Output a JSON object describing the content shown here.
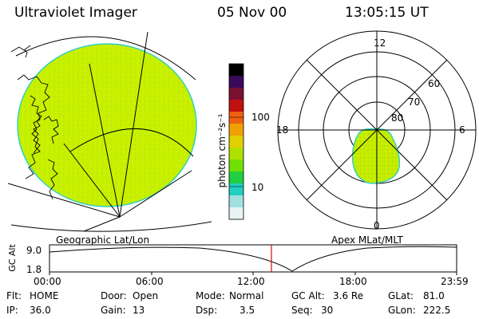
{
  "header": {
    "title": "Ultraviolet Imager",
    "date": "05 Nov 00",
    "time": "13:05:15 UT"
  },
  "panels": {
    "left_label": "Geographic Lat/Lon",
    "right_label": "Apex MLat/MLT"
  },
  "colorbar": {
    "unit_label": "photon cm⁻²s⁻¹",
    "ticks": [
      "100",
      "10"
    ],
    "colors": [
      "#000000",
      "#3a0a5a",
      "#7a1030",
      "#c01010",
      "#f06010",
      "#f0a000",
      "#e0d000",
      "#b0e000",
      "#70e000",
      "#20d040",
      "#20d0c0",
      "#a0e0e0",
      "#e8f4f4"
    ]
  },
  "polar": {
    "mlt_labels": [
      "12",
      "18",
      "6",
      "0"
    ],
    "lat_labels": [
      "60",
      "70",
      "80"
    ]
  },
  "timeline": {
    "axis_label": "GC Alt",
    "y_ticks": [
      "9.0",
      "1.8"
    ],
    "x_ticks": [
      "00:00",
      "06:00",
      "12:00",
      "18:00",
      "23:59"
    ],
    "marker_color": "#e00000"
  },
  "info": {
    "flt_label": "Flt:",
    "flt_value": "HOME",
    "ip_label": "IP:",
    "ip_value": "36.0",
    "door_label": "Door:",
    "door_value": "Open",
    "gain_label": "Gain:",
    "gain_value": "13",
    "mode_label": "Mode:",
    "mode_value": "Normal",
    "dsp_label": "Dsp:",
    "dsp_value": "3.5",
    "gcalt_label": "GC Alt:",
    "gcalt_value": "3.6 Re",
    "seq_label": "Seq:",
    "seq_value": "30",
    "glat_label": "GLat:",
    "glat_value": "81.0",
    "glon_label": "GLon:",
    "glon_value": "222.5"
  },
  "image_fill": "#c8f000",
  "image_edge": "#30d0c0"
}
